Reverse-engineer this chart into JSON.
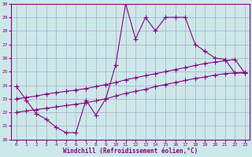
{
  "xlabel": "Windchill (Refroidissement éolien,°C)",
  "bg_color": "#cce8e8",
  "grid_color": "#aaaacc",
  "line_color": "#880088",
  "xlim": [
    -0.5,
    23.5
  ],
  "ylim": [
    20,
    30
  ],
  "yticks": [
    20,
    21,
    22,
    23,
    24,
    25,
    26,
    27,
    28,
    29,
    30
  ],
  "xticks": [
    0,
    1,
    2,
    3,
    4,
    5,
    6,
    7,
    8,
    9,
    10,
    11,
    12,
    13,
    14,
    15,
    16,
    17,
    18,
    19,
    20,
    21,
    22,
    23
  ],
  "line1_x": [
    0,
    1,
    2,
    3,
    4,
    5,
    6,
    7,
    8,
    9,
    10,
    11,
    12,
    13,
    14,
    15,
    16,
    17,
    18,
    19,
    20,
    21,
    22,
    23
  ],
  "line1_y": [
    23.9,
    22.9,
    21.9,
    21.5,
    20.9,
    20.5,
    20.5,
    22.9,
    21.8,
    23.0,
    25.5,
    30.0,
    27.4,
    29.0,
    28.0,
    29.0,
    29.0,
    29.0,
    27.0,
    26.5,
    26.0,
    25.9,
    24.9,
    24.9
  ],
  "line2_x": [
    0,
    1,
    2,
    3,
    4,
    5,
    6,
    7,
    8,
    9,
    10,
    11,
    12,
    13,
    14,
    15,
    16,
    17,
    18,
    19,
    20,
    21,
    22,
    23
  ],
  "line2_y": [
    22.0,
    22.1,
    22.2,
    22.3,
    22.4,
    22.5,
    22.6,
    22.7,
    22.85,
    23.0,
    23.2,
    23.4,
    23.55,
    23.7,
    23.9,
    24.05,
    24.2,
    24.35,
    24.5,
    24.6,
    24.75,
    24.85,
    24.9,
    24.95
  ],
  "line3_x": [
    0,
    1,
    2,
    3,
    4,
    5,
    6,
    7,
    8,
    9,
    10,
    11,
    12,
    13,
    14,
    15,
    16,
    17,
    18,
    19,
    20,
    21,
    22,
    23
  ],
  "line3_y": [
    23.0,
    23.1,
    23.2,
    23.35,
    23.45,
    23.55,
    23.65,
    23.75,
    23.9,
    24.05,
    24.2,
    24.4,
    24.55,
    24.7,
    24.85,
    25.0,
    25.15,
    25.3,
    25.45,
    25.6,
    25.7,
    25.8,
    25.9,
    24.9
  ]
}
